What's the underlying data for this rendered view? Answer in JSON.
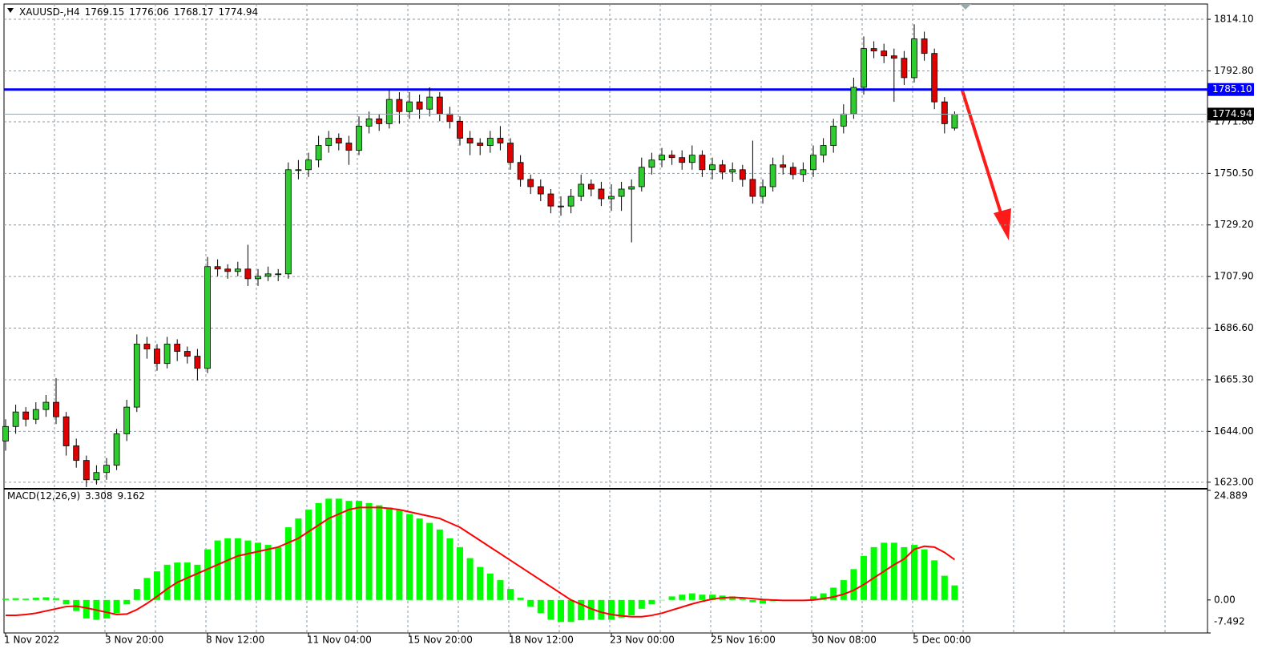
{
  "chart_data": {
    "type": "candlestick",
    "title": "XAUUSD-,H4",
    "categories": [
      "1 Nov 2022",
      null,
      null,
      null,
      null,
      null,
      null,
      null,
      null,
      null,
      "3 Nov 20:00",
      null,
      null,
      null,
      null,
      null,
      null,
      null,
      null,
      null,
      "8 Nov 12:00",
      null,
      null,
      null,
      null,
      null,
      null,
      null,
      null,
      null,
      "11 Nov 04:00",
      null,
      null,
      null,
      null,
      null,
      null,
      null,
      null,
      null,
      "15 Nov 20:00",
      null,
      null,
      null,
      null,
      null,
      null,
      null,
      null,
      null,
      "18 Nov 12:00",
      null,
      null,
      null,
      null,
      null,
      null,
      null,
      null,
      null,
      "23 Nov 00:00",
      null,
      null,
      null,
      null,
      null,
      null,
      null,
      null,
      null,
      "25 Nov 16:00",
      null,
      null,
      null,
      null,
      null,
      null,
      null,
      null,
      null,
      "30 Nov 08:00",
      null,
      null,
      null,
      null,
      null,
      null,
      null,
      null,
      null,
      "5 Dec 00:00",
      null,
      null,
      null,
      null
    ],
    "open": [
      1640,
      1646,
      1652,
      1649,
      1653,
      1656,
      1650,
      1638,
      1632,
      1624,
      1627,
      1630,
      1643,
      1654,
      1680,
      1678,
      1672,
      1680,
      1677,
      1675,
      1670,
      1712,
      1711,
      1710,
      1711,
      1707,
      1708,
      1709,
      1709,
      1752,
      1752,
      1756,
      1762,
      1765,
      1763,
      1760,
      1770,
      1773,
      1771,
      1781,
      1776,
      1780,
      1777,
      1782,
      1775,
      1772,
      1765,
      1763,
      1762,
      1765,
      1763,
      1755,
      1748,
      1745,
      1742,
      1737,
      1737,
      1741,
      1746,
      1744,
      1740,
      1741,
      1744,
      1745,
      1753,
      1756,
      1758,
      1757,
      1755,
      1758,
      1752,
      1754,
      1751,
      1752,
      1748,
      1741,
      1745,
      1754,
      1753,
      1750,
      1752,
      1758,
      1762,
      1770,
      1775,
      1786,
      1802,
      1801,
      1799,
      1798,
      1790,
      1806,
      1800,
      1780,
      1769.15
    ],
    "high": [
      1649,
      1655,
      1654,
      1656,
      1659,
      1666,
      1652,
      1641,
      1634,
      1630,
      1633,
      1645,
      1657,
      1684,
      1683,
      1680,
      1683,
      1682,
      1679,
      1678,
      1716,
      1715,
      1713,
      1714,
      1721,
      1711,
      1712,
      1711,
      1755,
      1756,
      1759,
      1766,
      1768,
      1767,
      1766,
      1774,
      1776,
      1775,
      1785,
      1784,
      1784,
      1783,
      1786,
      1784,
      1778,
      1774,
      1768,
      1765,
      1768,
      1770,
      1765,
      1758,
      1750,
      1748,
      1744,
      1741,
      1744,
      1750,
      1748,
      1747,
      1746,
      1747,
      1748,
      1757,
      1759,
      1761,
      1760,
      1760,
      1762,
      1760,
      1757,
      1756,
      1755,
      1754,
      1764,
      1748,
      1757,
      1758,
      1755,
      1755,
      1762,
      1765,
      1773,
      1779,
      1790,
      1807,
      1805,
      1804,
      1802,
      1801,
      1812,
      1809,
      1802,
      1782,
      1776.06
    ],
    "low": [
      1636,
      1643,
      1646,
      1647,
      1650,
      1647,
      1634,
      1629,
      1621,
      1622,
      1624,
      1628,
      1640,
      1652,
      1674,
      1669,
      1670,
      1673,
      1672,
      1665,
      1668,
      1708,
      1707,
      1708,
      1704,
      1704,
      1706,
      1706,
      1707,
      1748,
      1749,
      1753,
      1759,
      1760,
      1754,
      1758,
      1767,
      1768,
      1769,
      1771,
      1773,
      1773,
      1774,
      1772,
      1769,
      1762,
      1758,
      1758,
      1759,
      1760,
      1752,
      1745,
      1742,
      1739,
      1734,
      1733,
      1734,
      1739,
      1741,
      1737,
      1735,
      1735,
      1722,
      1743,
      1750,
      1753,
      1754,
      1752,
      1752,
      1749,
      1748,
      1748,
      1747,
      1745,
      1738,
      1738,
      1743,
      1750,
      1748,
      1747,
      1749,
      1755,
      1759,
      1767,
      1773,
      1783,
      1798,
      1796,
      1780,
      1787,
      1788,
      1797,
      1777,
      1767,
      1768.17
    ],
    "close": [
      1646,
      1652,
      1649,
      1653,
      1656,
      1650,
      1638,
      1632,
      1624,
      1627,
      1630,
      1643,
      1654,
      1680,
      1678,
      1672,
      1680,
      1677,
      1675,
      1670,
      1712,
      1711,
      1710,
      1711,
      1707,
      1708,
      1709,
      1709,
      1752,
      1752,
      1756,
      1762,
      1765,
      1763,
      1760,
      1770,
      1773,
      1771,
      1781,
      1776,
      1780,
      1777,
      1782,
      1775,
      1772,
      1765,
      1763,
      1762,
      1765,
      1763,
      1755,
      1748,
      1745,
      1742,
      1737,
      1737,
      1741,
      1746,
      1744,
      1740,
      1741,
      1744,
      1745,
      1753,
      1756,
      1758,
      1757,
      1755,
      1758,
      1752,
      1754,
      1751,
      1752,
      1748,
      1741,
      1745,
      1754,
      1753,
      1750,
      1752,
      1758,
      1762,
      1770,
      1775,
      1786,
      1802,
      1801,
      1799,
      1798,
      1790,
      1806,
      1800,
      1780,
      1771,
      1774.94
    ],
    "up_color": "#2ecc2e",
    "down_color": "#e00000",
    "ylim": [
      1620.3,
      1820.4
    ],
    "yticks": [
      {
        "value": 1814.1,
        "label": "1814.10"
      },
      {
        "value": 1792.8,
        "label": "1792.80"
      },
      {
        "value": 1771.8,
        "label": "1771.80"
      },
      {
        "value": 1750.5,
        "label": "1750.50"
      },
      {
        "value": 1729.2,
        "label": "1729.20"
      },
      {
        "value": 1707.9,
        "label": "1707.90"
      },
      {
        "value": 1686.6,
        "label": "1686.60"
      },
      {
        "value": 1665.3,
        "label": "1665.30"
      },
      {
        "value": 1644,
        "label": "1644.00"
      },
      {
        "value": 1623,
        "label": "1623.00"
      }
    ],
    "grid": true,
    "hline": {
      "value": 1785.1,
      "label": "1785.10",
      "color": "#0000ff"
    },
    "macd": {
      "title": "MACD(12,26,9)",
      "histogram": [
        0.3,
        0.4,
        0.3,
        0.5,
        0.6,
        0.4,
        -1,
        -2.5,
        -4.2,
        -4.5,
        -4.2,
        -3,
        -1,
        2.5,
        5,
        6.5,
        8,
        8.5,
        8.5,
        8,
        11.5,
        13.5,
        14,
        14,
        13.5,
        13,
        12.5,
        12,
        16.5,
        18.5,
        20.5,
        22,
        23,
        23,
        22.5,
        22.5,
        22,
        21.5,
        21,
        20.5,
        19.5,
        18.5,
        17.5,
        16,
        14,
        12,
        9.5,
        7.5,
        6,
        4.5,
        2.5,
        0.5,
        -1.5,
        -3,
        -4.5,
        -5,
        -5,
        -4.6,
        -4.5,
        -4.5,
        -4.5,
        -4,
        -3.5,
        -2,
        -1,
        0,
        0.8,
        1.2,
        1.5,
        1.2,
        1.2,
        1,
        0.8,
        0.5,
        -0.5,
        -0.8,
        -0.3,
        0,
        -0.2,
        0,
        0.8,
        1.5,
        2.8,
        4.5,
        7,
        10,
        12,
        13,
        13,
        12,
        12.5,
        11.5,
        9,
        5.5,
        3.308
      ],
      "signal": [
        -3.5,
        -3.5,
        -3.3,
        -3,
        -2.5,
        -2,
        -1.5,
        -1.4,
        -1.8,
        -2.3,
        -2.8,
        -3.3,
        -3.2,
        -2.2,
        -0.8,
        0.8,
        2.5,
        4,
        5,
        6,
        7,
        8,
        9,
        10,
        10.5,
        11,
        11.5,
        12,
        13,
        14,
        15.5,
        17,
        18.5,
        19.5,
        20.5,
        21,
        21,
        21,
        20.8,
        20.5,
        20,
        19.5,
        19,
        18.5,
        17.5,
        16.5,
        15,
        13.5,
        12,
        10.5,
        9,
        7.5,
        6,
        4.5,
        3,
        1.5,
        0,
        -1,
        -2,
        -2.8,
        -3.3,
        -3.6,
        -3.8,
        -3.8,
        -3.5,
        -3,
        -2.3,
        -1.6,
        -0.9,
        -0.3,
        0.2,
        0.5,
        0.6,
        0.5,
        0.3,
        0.1,
        0,
        -0.1,
        -0.1,
        -0.1,
        0,
        0.3,
        0.7,
        1.3,
        2.2,
        3.5,
        5,
        6.5,
        8,
        9.3,
        11.5,
        12.2,
        12,
        10.8,
        9.162
      ],
      "histogram_color": "#00ff00",
      "signal_color": "#ff0000",
      "y2lim": [
        -7.492,
        24.889
      ],
      "y2ticks": [
        24.889,
        {
          "value": 0,
          "label": "0.00"
        },
        -7.492
      ]
    }
  }
}
